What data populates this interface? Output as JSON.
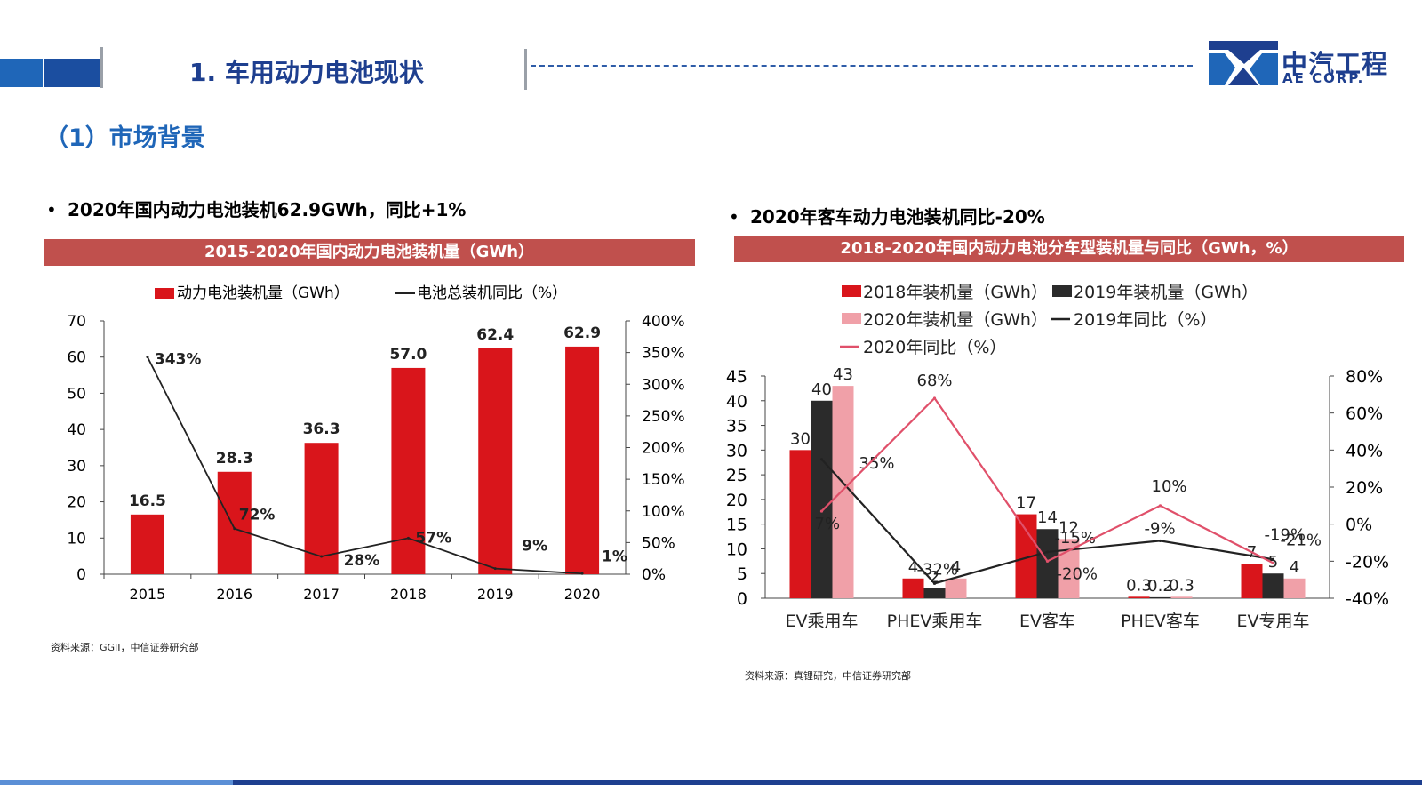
{
  "header": {
    "title": "1. 车用动力电池现状"
  },
  "logo": {
    "cn": "中汽工程",
    "en": "AE CORP."
  },
  "section": {
    "title": "（1）市场背景"
  },
  "left": {
    "bullet": "2020年国内动力电池装机62.9GWh，同比+1%",
    "banner": "2015-2020年国内动力电池装机量（GWh）",
    "source": "资料来源：GGII，中信证券研究部"
  },
  "right": {
    "bullet": "2020年客车动力电池装机同比-20%",
    "banner": "2018-2020年国内动力电池分车型装机量与同比（GWh，%）",
    "source": "资料来源：真锂研究，中信证券研究部"
  },
  "colors": {
    "brand_blue": "#1e3f8f",
    "accent_blue": "#1f66b8",
    "banner_red": "#c0504d",
    "bar_red": "#d9151b",
    "bar_dark": "#2b2b2b",
    "bar_pink": "#f0a0a8",
    "line_pink": "#e0506a"
  },
  "chart_data": [
    {
      "type": "bar",
      "categories": [
        "2015",
        "2016",
        "2017",
        "2018",
        "2019",
        "2020"
      ],
      "series": [
        {
          "name": "动力电池装机量（GWh）",
          "type": "bar",
          "axis": "left",
          "values": [
            16.5,
            28.3,
            36.3,
            57.0,
            62.4,
            62.9
          ],
          "labels": [
            "16.5",
            "28.3",
            "36.3",
            "57.0",
            "62.4",
            "62.9"
          ]
        },
        {
          "name": "电池总装机同比（%）",
          "type": "line",
          "axis": "right",
          "values": [
            343,
            72,
            28,
            57,
            9,
            1
          ],
          "labels": [
            "343%",
            "72%",
            "28%",
            "57%",
            "9%",
            "1%"
          ]
        }
      ],
      "ylim": [
        0,
        70
      ],
      "yticks": [
        "0",
        "10",
        "20",
        "30",
        "40",
        "50",
        "60",
        "70"
      ],
      "y2lim": [
        0,
        400
      ],
      "y2ticks": [
        "0%",
        "50%",
        "100%",
        "150%",
        "200%",
        "250%",
        "300%",
        "350%",
        "400%"
      ],
      "legend": "top"
    },
    {
      "type": "bar",
      "categories": [
        "EV乘用车",
        "PHEV乘用车",
        "EV客车",
        "PHEV客车",
        "EV专用车"
      ],
      "series": [
        {
          "name": "2018年装机量（GWh）",
          "type": "bar",
          "axis": "left",
          "values": [
            30,
            4,
            17,
            0.3,
            7
          ],
          "labels": [
            "30",
            "4",
            "17",
            "0.3",
            "7"
          ]
        },
        {
          "name": "2019年装机量（GWh）",
          "type": "bar",
          "axis": "left",
          "values": [
            40,
            2,
            14,
            0.2,
            5
          ],
          "labels": [
            "40",
            "2",
            "14",
            "0.2",
            "5"
          ]
        },
        {
          "name": "2020年装机量（GWh）",
          "type": "bar",
          "axis": "left",
          "values": [
            43,
            4,
            12,
            0.3,
            4
          ],
          "labels": [
            "43",
            "4",
            "12",
            "0.3",
            "4"
          ]
        },
        {
          "name": "2019年同比（%）",
          "type": "line",
          "axis": "right",
          "values": [
            35,
            -32,
            -15,
            -9,
            -19
          ],
          "labels": [
            "35%",
            "-32%",
            "-15%",
            "-9%",
            "-19%"
          ]
        },
        {
          "name": "2020年同比（%）",
          "type": "line",
          "axis": "right",
          "values": [
            7,
            68,
            -20,
            10,
            -21
          ],
          "labels": [
            "7%",
            "68%",
            "-20%",
            "10%",
            "-21%"
          ]
        }
      ],
      "ylim": [
        0,
        45
      ],
      "yticks": [
        "0",
        "5",
        "10",
        "15",
        "20",
        "25",
        "30",
        "35",
        "40",
        "45"
      ],
      "y2lim": [
        -40,
        80
      ],
      "y2ticks": [
        "-40%",
        "-20%",
        "0%",
        "20%",
        "40%",
        "60%",
        "80%"
      ],
      "legend": "top"
    }
  ]
}
